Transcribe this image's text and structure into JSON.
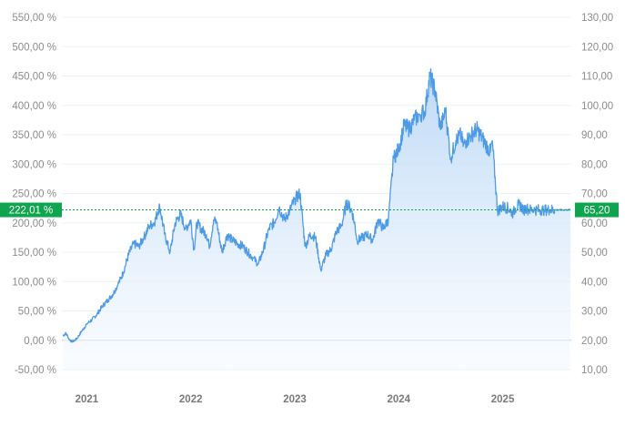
{
  "chart_data": {
    "type": "area",
    "colors": {
      "line": "#4d9be6",
      "fill_top": "#b9d7f6",
      "fill_bottom": "#f6faff",
      "badge": "#0fa54f",
      "reference": "#0fa54f",
      "grid": "#eef0f3"
    },
    "grid": true,
    "y_left": {
      "ticks": [
        "550,00 %",
        "500,00 %",
        "450,00 %",
        "400,00 %",
        "350,00 %",
        "300,00 %",
        "250,00 %",
        "200,00 %",
        "150,00 %",
        "100,00 %",
        "50,00 %",
        "0,00 %",
        "-50,00 %"
      ],
      "tick_values": [
        550,
        500,
        450,
        400,
        350,
        300,
        250,
        200,
        150,
        100,
        50,
        0,
        -50
      ],
      "range": [
        -50,
        550
      ]
    },
    "y_right": {
      "ticks": [
        "130,00",
        "120,00",
        "110,00",
        "100,00",
        "90,00",
        "80,00",
        "70,00",
        "60,00",
        "50,00",
        "40,00",
        "30,00",
        "20,00",
        "10,00"
      ],
      "tick_values": [
        130,
        120,
        110,
        100,
        90,
        80,
        70,
        60,
        50,
        40,
        30,
        20,
        10
      ],
      "range": [
        10,
        130
      ]
    },
    "x": {
      "ticks": [
        "2021",
        "2022",
        "2023",
        "2024",
        "2025"
      ],
      "tick_values": [
        2021,
        2022,
        2023,
        2024,
        2025
      ],
      "range": [
        2020.76,
        2025.66
      ]
    },
    "current": {
      "percent": 222.01,
      "percent_label": "222,01 %",
      "price": 65.2,
      "price_label": "65,20"
    },
    "series": [
      {
        "x": [
          2020.77,
          2020.8,
          2020.83,
          2020.86,
          2020.9,
          2020.95,
          2021.0,
          2021.05,
          2021.1,
          2021.15,
          2021.2,
          2021.25,
          2021.3,
          2021.35,
          2021.4,
          2021.45,
          2021.5,
          2021.55,
          2021.6,
          2021.65,
          2021.7,
          2021.75,
          2021.8,
          2021.85,
          2021.9,
          2021.95,
          2022.0,
          2022.03,
          2022.06,
          2022.1,
          2022.15,
          2022.18,
          2022.22,
          2022.25,
          2022.3,
          2022.35,
          2022.4,
          2022.45,
          2022.5,
          2022.55,
          2022.6,
          2022.65,
          2022.7,
          2022.75,
          2022.8,
          2022.85,
          2022.9,
          2022.95,
          2023.0,
          2023.05,
          2023.1,
          2023.15,
          2023.2,
          2023.25,
          2023.3,
          2023.35,
          2023.4,
          2023.45,
          2023.5,
          2023.55,
          2023.58,
          2023.6,
          2023.65,
          2023.7,
          2023.75,
          2023.8,
          2023.85,
          2023.9,
          2023.95,
          2024.0,
          2024.05,
          2024.1,
          2024.15,
          2024.2,
          2024.25,
          2024.3,
          2024.35,
          2024.4,
          2024.45,
          2024.5,
          2024.55,
          2024.6,
          2024.62,
          2024.65,
          2024.7,
          2024.75,
          2024.8,
          2024.85,
          2024.88,
          2024.9,
          2024.95,
          2025.0,
          2025.05,
          2025.08,
          2025.1,
          2025.12,
          2025.15,
          2025.18,
          2025.2,
          2025.23,
          2025.25,
          2025.28,
          2025.3,
          2025.35,
          2025.4,
          2025.45,
          2025.5,
          2025.55,
          2025.58,
          2025.6,
          2025.62,
          2025.65
        ],
        "values": [
          8,
          12,
          2,
          -3,
          2,
          15,
          28,
          35,
          45,
          58,
          68,
          78,
          95,
          115,
          145,
          165,
          160,
          175,
          195,
          200,
          230,
          180,
          150,
          200,
          215,
          190,
          205,
          155,
          200,
          190,
          180,
          160,
          205,
          200,
          150,
          180,
          170,
          165,
          160,
          150,
          140,
          130,
          155,
          190,
          200,
          225,
          205,
          220,
          240,
          250,
          160,
          180,
          175,
          120,
          145,
          155,
          185,
          195,
          235,
          220,
          195,
          170,
          175,
          180,
          170,
          205,
          190,
          205,
          310,
          325,
          365,
          360,
          375,
          385,
          390,
          450,
          425,
          360,
          390,
          310,
          340,
          350,
          330,
          340,
          350,
          360,
          345,
          330,
          320,
          340,
          220,
          228,
          225,
          220,
          215,
          225,
          230,
          228,
          222,
          225,
          222,
          222,
          222,
          222,
          222,
          222,
          222,
          222,
          222,
          222,
          222,
          222
        ]
      }
    ]
  }
}
